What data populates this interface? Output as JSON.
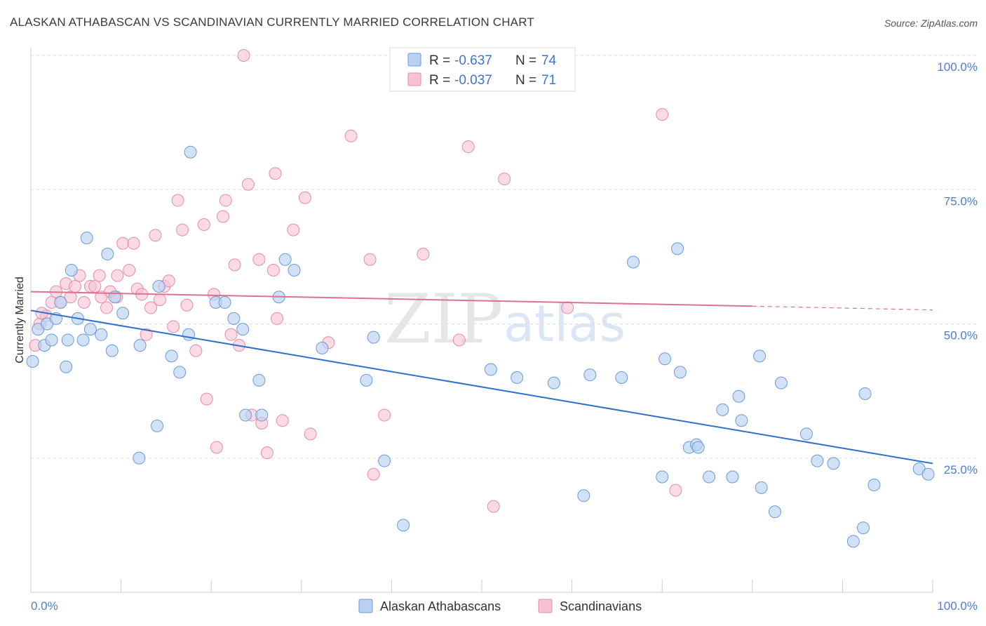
{
  "title": "ALASKAN ATHABASCAN VS SCANDINAVIAN CURRENTLY MARRIED CORRELATION CHART",
  "source": "Source: ZipAtlas.com",
  "watermark": {
    "zip": "ZIP",
    "atlas": "atlas"
  },
  "colors": {
    "blue_fill": "#b9d2f3",
    "blue_stroke": "#6c9ad8",
    "blue_line": "#2f6fcf",
    "pink_fill": "#f7c2d4",
    "pink_stroke": "#e68cab",
    "pink_line": "#e0708f",
    "axis_text": "#4a7fd0",
    "grid": "#dddddd"
  },
  "legend": {
    "blue": {
      "r_label": "R =",
      "r_value": "-0.637",
      "n_label": "N =",
      "n_value": "74"
    },
    "pink": {
      "r_label": "R =",
      "r_value": "-0.037",
      "n_label": "N =",
      "n_value": "71"
    }
  },
  "bottom_legend": {
    "blue": "Alaskan Athabascans",
    "pink": "Scandinavians"
  },
  "chart_data": {
    "type": "scatter",
    "title": "ALASKAN ATHABASCAN VS SCANDINAVIAN CURRENTLY MARRIED CORRELATION CHART",
    "xlabel": "",
    "ylabel": "Currently Married",
    "xlim": [
      0,
      100
    ],
    "ylim": [
      0,
      100
    ],
    "x_tick_labels": [
      "0.0%",
      "100.0%"
    ],
    "y_ticks": [
      25,
      50,
      75,
      100
    ],
    "y_tick_labels": [
      "25.0%",
      "50.0%",
      "75.0%",
      "100.0%"
    ],
    "grid": true,
    "legend_position": "top-center",
    "series": [
      {
        "name": "Alaskan Athabascans",
        "r": -0.637,
        "n": 74,
        "trend": {
          "x": [
            0,
            100
          ],
          "y": [
            52.5,
            24.0
          ]
        },
        "points": [
          [
            0.2,
            43
          ],
          [
            0.8,
            49
          ],
          [
            1.5,
            46
          ],
          [
            1.8,
            50
          ],
          [
            2.3,
            47
          ],
          [
            2.8,
            51
          ],
          [
            3.3,
            54
          ],
          [
            3.9,
            42
          ],
          [
            4.1,
            47
          ],
          [
            4.5,
            60
          ],
          [
            5.2,
            51
          ],
          [
            5.8,
            47
          ],
          [
            6.2,
            66
          ],
          [
            6.6,
            49
          ],
          [
            7.8,
            48
          ],
          [
            8.5,
            63
          ],
          [
            9.0,
            45
          ],
          [
            9.3,
            55
          ],
          [
            10.2,
            52
          ],
          [
            12.0,
            25
          ],
          [
            12.1,
            46
          ],
          [
            14.0,
            31
          ],
          [
            14.2,
            57
          ],
          [
            15.6,
            44
          ],
          [
            16.5,
            41
          ],
          [
            17.5,
            48
          ],
          [
            17.7,
            82
          ],
          [
            20.5,
            54
          ],
          [
            21.5,
            54
          ],
          [
            22.5,
            51
          ],
          [
            23.5,
            49
          ],
          [
            23.8,
            33
          ],
          [
            25.3,
            39.5
          ],
          [
            25.6,
            33
          ],
          [
            27.5,
            55
          ],
          [
            28.2,
            62
          ],
          [
            29.2,
            60
          ],
          [
            32.3,
            45.5
          ],
          [
            37.2,
            39.5
          ],
          [
            38.0,
            47.5
          ],
          [
            39.2,
            24.5
          ],
          [
            41.3,
            12.5
          ],
          [
            51.0,
            41.5
          ],
          [
            53.9,
            40
          ],
          [
            58.0,
            39
          ],
          [
            61.3,
            18
          ],
          [
            62.0,
            40.5
          ],
          [
            65.5,
            40
          ],
          [
            66.8,
            61.5
          ],
          [
            70.0,
            21.5
          ],
          [
            70.3,
            43.5
          ],
          [
            71.7,
            64
          ],
          [
            72.0,
            41
          ],
          [
            73.0,
            27
          ],
          [
            73.8,
            27.5
          ],
          [
            74.0,
            27
          ],
          [
            75.2,
            21.5
          ],
          [
            76.7,
            34
          ],
          [
            77.8,
            21.5
          ],
          [
            78.5,
            36.5
          ],
          [
            78.8,
            32
          ],
          [
            80.8,
            44
          ],
          [
            81.0,
            19.5
          ],
          [
            82.5,
            15
          ],
          [
            83.2,
            39
          ],
          [
            86.0,
            29.5
          ],
          [
            87.2,
            24.5
          ],
          [
            89.0,
            24
          ],
          [
            91.2,
            9.5
          ],
          [
            92.3,
            12
          ],
          [
            92.5,
            37
          ],
          [
            93.5,
            20
          ],
          [
            98.5,
            23
          ],
          [
            99.5,
            22
          ]
        ]
      },
      {
        "name": "Scandinavians",
        "r": -0.037,
        "n": 71,
        "trend": {
          "x": [
            0,
            80,
            100
          ],
          "y": [
            56.0,
            53.3,
            52.6
          ],
          "solid_until": 80
        },
        "points": [
          [
            0.5,
            46
          ],
          [
            1.0,
            50
          ],
          [
            1.7,
            51.5
          ],
          [
            2.3,
            54
          ],
          [
            2.8,
            56
          ],
          [
            3.3,
            54
          ],
          [
            3.9,
            57.5
          ],
          [
            4.4,
            55
          ],
          [
            4.9,
            57
          ],
          [
            5.4,
            59
          ],
          [
            5.9,
            54
          ],
          [
            6.6,
            57
          ],
          [
            7.1,
            57
          ],
          [
            7.6,
            59
          ],
          [
            7.8,
            55
          ],
          [
            8.4,
            53
          ],
          [
            8.8,
            56
          ],
          [
            9.5,
            55
          ],
          [
            9.6,
            59
          ],
          [
            10.2,
            65
          ],
          [
            10.9,
            60
          ],
          [
            11.4,
            65
          ],
          [
            11.8,
            56.5
          ],
          [
            12.3,
            55.5
          ],
          [
            12.8,
            48
          ],
          [
            13.3,
            53
          ],
          [
            13.8,
            66.5
          ],
          [
            14.3,
            54.5
          ],
          [
            14.8,
            57
          ],
          [
            15.3,
            58
          ],
          [
            15.8,
            49.5
          ],
          [
            16.3,
            73
          ],
          [
            16.8,
            67.5
          ],
          [
            17.3,
            53.5
          ],
          [
            18.3,
            45
          ],
          [
            19.2,
            68.5
          ],
          [
            19.5,
            36
          ],
          [
            20.3,
            55.5
          ],
          [
            20.6,
            27
          ],
          [
            21.3,
            70
          ],
          [
            21.6,
            73
          ],
          [
            22.2,
            48
          ],
          [
            22.6,
            61
          ],
          [
            23.1,
            46
          ],
          [
            23.6,
            100
          ],
          [
            24.1,
            76
          ],
          [
            24.5,
            33
          ],
          [
            25.3,
            62
          ],
          [
            25.6,
            31.5
          ],
          [
            26.2,
            26
          ],
          [
            26.9,
            60
          ],
          [
            27.1,
            78
          ],
          [
            27.3,
            51
          ],
          [
            27.9,
            32
          ],
          [
            29.1,
            67.5
          ],
          [
            30.4,
            73.5
          ],
          [
            31.0,
            29.5
          ],
          [
            33.0,
            46.5
          ],
          [
            35.5,
            85
          ],
          [
            37.6,
            62
          ],
          [
            38.0,
            22
          ],
          [
            39.2,
            33
          ],
          [
            43.5,
            63
          ],
          [
            47.5,
            47
          ],
          [
            48.5,
            83
          ],
          [
            51.3,
            16
          ],
          [
            52.5,
            77
          ],
          [
            59.5,
            53
          ],
          [
            70.0,
            89
          ],
          [
            71.5,
            19
          ],
          [
            1.2,
            52
          ]
        ]
      }
    ]
  }
}
